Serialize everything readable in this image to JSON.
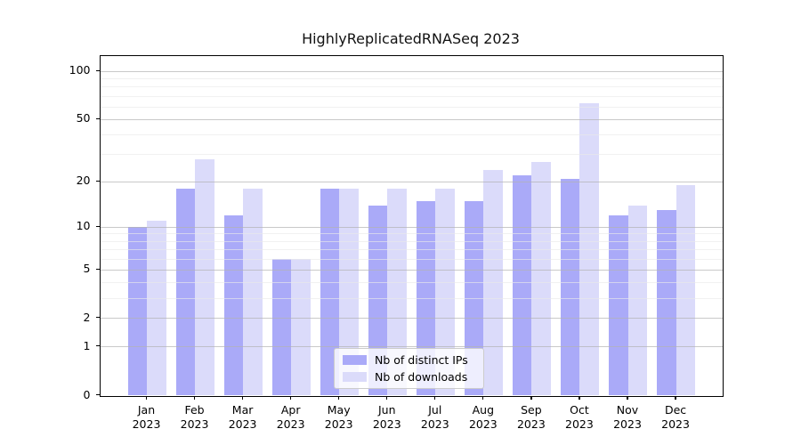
{
  "title": "HighlyReplicatedRNASeq 2023",
  "chart_data": {
    "type": "bar",
    "title": "HighlyReplicatedRNASeq 2023",
    "categories": [
      "Jan",
      "Feb",
      "Mar",
      "Apr",
      "May",
      "Jun",
      "Jul",
      "Aug",
      "Sep",
      "Oct",
      "Nov",
      "Dec"
    ],
    "year_label": "2023",
    "series": [
      {
        "name": "Nb of distinct IPs",
        "color": "#aaaaf8",
        "values": [
          10,
          18,
          12,
          6,
          18,
          14,
          15,
          15,
          22,
          21,
          12,
          13
        ]
      },
      {
        "name": "Nb of downloads",
        "color": "#dbdbfa",
        "values": [
          11,
          28,
          18,
          6,
          18,
          18,
          18,
          24,
          27,
          63,
          14,
          19
        ]
      }
    ],
    "yscale": "log1p",
    "ylim": [
      0,
      125
    ],
    "yticks": [
      0,
      1,
      2,
      5,
      10,
      20,
      50,
      100
    ],
    "yticks_minor": [
      3,
      4,
      6,
      7,
      8,
      9,
      30,
      40,
      60,
      70,
      80,
      90
    ],
    "grid": true,
    "legend_position": "lower center"
  }
}
